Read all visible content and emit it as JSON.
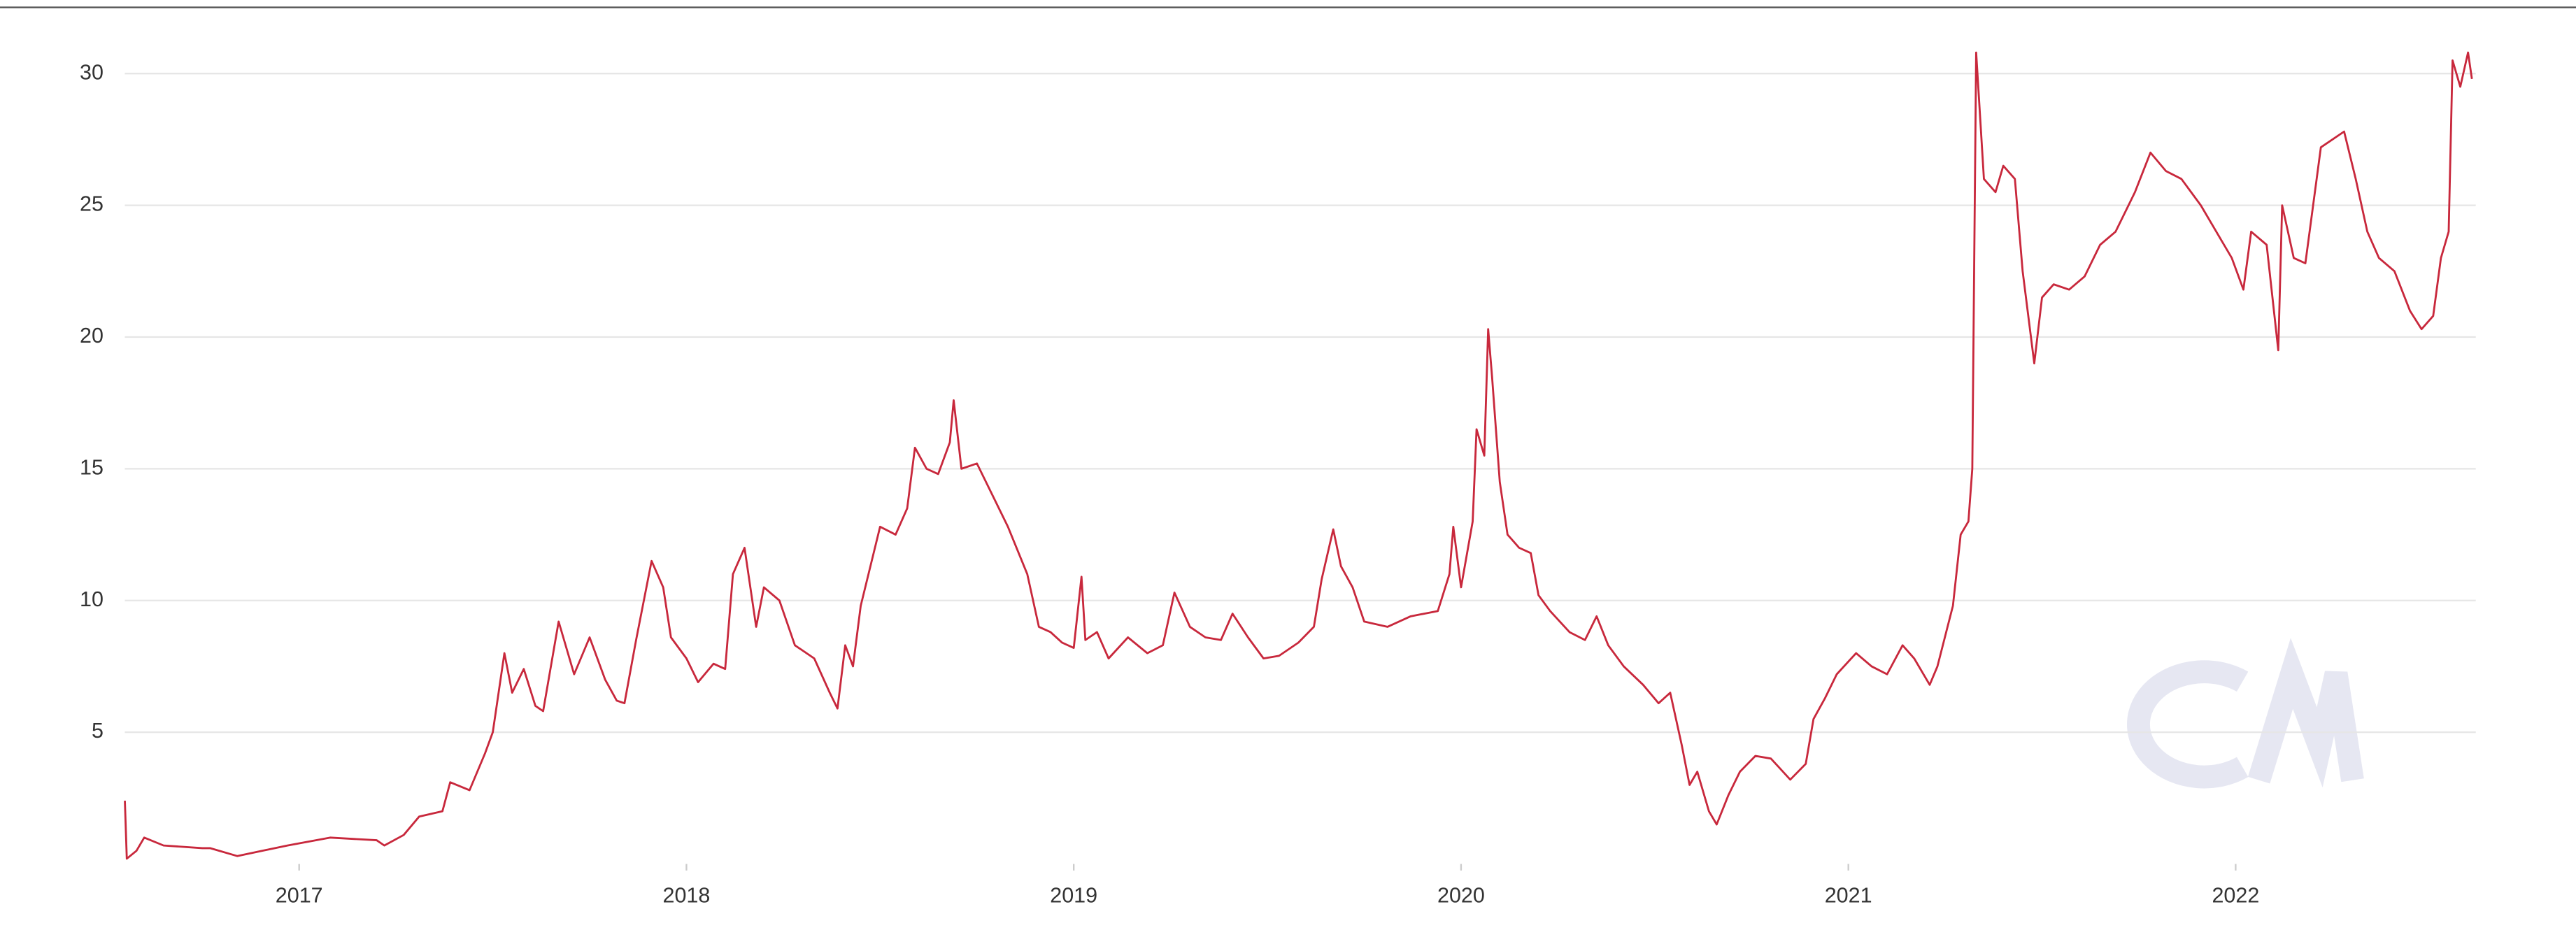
{
  "chart_data": {
    "type": "line",
    "x": [
      2016.55,
      2016.555,
      2016.58,
      2016.6,
      2016.65,
      2016.75,
      2016.77,
      2016.84,
      2016.97,
      2017.08,
      2017.2,
      2017.22,
      2017.27,
      2017.31,
      2017.37,
      2017.39,
      2017.44,
      2017.48,
      2017.5,
      2017.53,
      2017.55,
      2017.58,
      2017.61,
      2017.63,
      2017.67,
      2017.71,
      2017.75,
      2017.79,
      2017.82,
      2017.84,
      2017.87,
      2017.91,
      2017.94,
      2017.96,
      2018.0,
      2018.03,
      2018.07,
      2018.1,
      2018.12,
      2018.15,
      2018.18,
      2018.2,
      2018.24,
      2018.28,
      2018.33,
      2018.37,
      2018.39,
      2018.41,
      2018.43,
      2018.45,
      2018.47,
      2018.5,
      2018.54,
      2018.57,
      2018.59,
      2018.62,
      2018.65,
      2018.68,
      2018.69,
      2018.71,
      2018.75,
      2018.79,
      2018.83,
      2018.88,
      2018.91,
      2018.94,
      2018.97,
      2019.0,
      2019.02,
      2019.03,
      2019.06,
      2019.09,
      2019.14,
      2019.19,
      2019.23,
      2019.26,
      2019.3,
      2019.34,
      2019.38,
      2019.41,
      2019.45,
      2019.49,
      2019.53,
      2019.58,
      2019.62,
      2019.64,
      2019.67,
      2019.69,
      2019.72,
      2019.75,
      2019.81,
      2019.87,
      2019.94,
      2019.97,
      2019.98,
      2020.0,
      2020.03,
      2020.04,
      2020.06,
      2020.07,
      2020.08,
      2020.1,
      2020.12,
      2020.15,
      2020.18,
      2020.2,
      2020.23,
      2020.28,
      2020.32,
      2020.35,
      2020.38,
      2020.42,
      2020.47,
      2020.51,
      2020.54,
      2020.57,
      2020.59,
      2020.61,
      2020.64,
      2020.66,
      2020.69,
      2020.72,
      2020.76,
      2020.8,
      2020.85,
      2020.89,
      2020.91,
      2020.94,
      2020.97,
      2021.02,
      2021.06,
      2021.1,
      2021.14,
      2021.17,
      2021.21,
      2021.23,
      2021.27,
      2021.29,
      2021.31,
      2021.32,
      2021.33,
      2021.35,
      2021.38,
      2021.4,
      2021.43,
      2021.45,
      2021.48,
      2021.5,
      2021.53,
      2021.57,
      2021.61,
      2021.65,
      2021.69,
      2021.74,
      2021.78,
      2021.82,
      2021.86,
      2021.91,
      2021.95,
      2021.99,
      2022.02,
      2022.04,
      2022.08,
      2022.11,
      2022.12,
      2022.15,
      2022.18,
      2022.2,
      2022.22,
      2022.25,
      2022.28,
      2022.31,
      2022.34,
      2022.37,
      2022.41,
      2022.45,
      2022.48,
      2022.51,
      2022.53,
      2022.55,
      2022.56,
      2022.58,
      2022.6,
      2022.61
    ],
    "series": [
      {
        "color": "#c8283c",
        "values": [
          2.4,
          0.2,
          0.5,
          1.0,
          0.7,
          0.6,
          0.6,
          0.3,
          0.7,
          1.0,
          0.9,
          0.7,
          1.1,
          1.8,
          2.0,
          3.1,
          2.8,
          4.2,
          5.0,
          8.0,
          6.5,
          7.4,
          6.0,
          5.8,
          9.2,
          7.2,
          8.6,
          7.0,
          6.2,
          6.1,
          8.5,
          11.5,
          10.5,
          8.6,
          7.8,
          6.9,
          7.6,
          7.4,
          11.0,
          12.0,
          9.0,
          10.5,
          10.0,
          8.3,
          7.8,
          6.5,
          5.9,
          8.3,
          7.5,
          9.8,
          11.0,
          12.8,
          12.5,
          13.5,
          15.8,
          15.0,
          14.8,
          16.0,
          17.6,
          15.0,
          15.2,
          14.0,
          12.8,
          11.0,
          9.0,
          8.8,
          8.4,
          8.2,
          10.9,
          8.5,
          8.8,
          7.8,
          8.6,
          8.0,
          8.3,
          10.3,
          9.0,
          8.6,
          8.5,
          9.5,
          8.6,
          7.8,
          7.9,
          8.4,
          9.0,
          10.8,
          12.7,
          11.3,
          10.5,
          9.2,
          9.0,
          9.4,
          9.6,
          11.0,
          12.8,
          10.5,
          13.0,
          16.5,
          15.5,
          20.3,
          18.5,
          14.5,
          12.5,
          12.0,
          11.8,
          10.2,
          9.6,
          8.8,
          8.5,
          9.4,
          8.3,
          7.5,
          6.8,
          6.1,
          6.5,
          4.5,
          3.0,
          3.5,
          2.0,
          1.5,
          2.6,
          3.5,
          4.1,
          4.0,
          3.2,
          3.8,
          5.5,
          6.3,
          7.2,
          8.0,
          7.5,
          7.2,
          8.3,
          7.8,
          6.8,
          7.5,
          9.8,
          12.5,
          13.0,
          15.0,
          30.8,
          26.0,
          25.5,
          26.5,
          26.0,
          22.5,
          19.0,
          21.5,
          22.0,
          21.8,
          22.3,
          23.5,
          24.0,
          25.5,
          27.0,
          26.3,
          26.0,
          25.0,
          24.0,
          23.0,
          21.8,
          24.0,
          23.5,
          19.5,
          25.0,
          23.0,
          22.8,
          25.0,
          27.2,
          27.5,
          27.8,
          26.0,
          24.0,
          23.0,
          22.5,
          21.0,
          20.3,
          20.8,
          23.0,
          24.0,
          30.5,
          29.5,
          30.8,
          29.8
        ]
      }
    ],
    "xlim": [
      2016.55,
      2022.62
    ],
    "xticks": [
      2017,
      2018,
      2019,
      2020,
      2021,
      2022
    ],
    "ylim": [
      0,
      31
    ],
    "yticks": [
      5,
      10,
      15,
      20,
      25,
      30
    ],
    "grid": true
  }
}
